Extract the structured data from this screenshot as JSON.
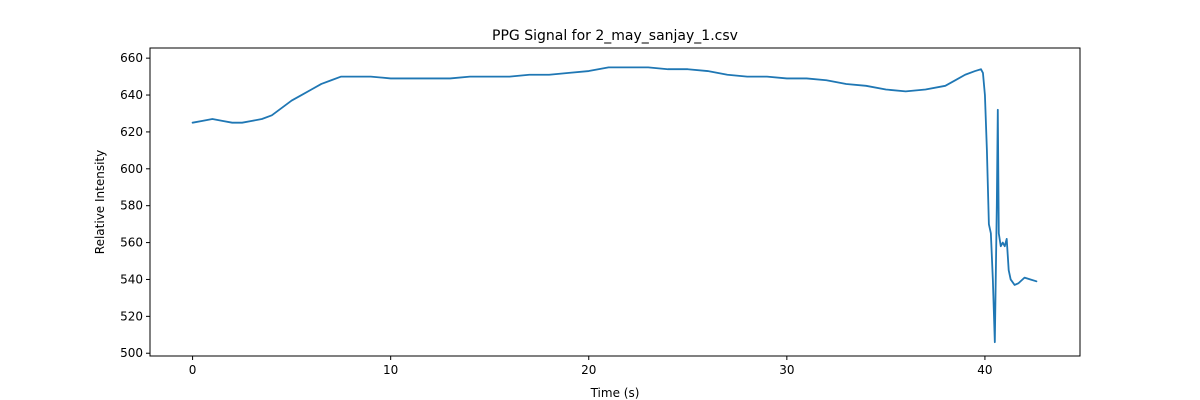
{
  "chart_data": {
    "type": "line",
    "title": "PPG Signal for 2_may_sanjay_1.csv",
    "xlabel": "Time (s)",
    "ylabel": "Relative Intensity",
    "xlim": [
      -2.15,
      44.8
    ],
    "ylim": [
      498.5,
      665.5
    ],
    "xticks": [
      0,
      10,
      20,
      30,
      40
    ],
    "xtick_labels": [
      "0",
      "10",
      "20",
      "30",
      "40"
    ],
    "yticks": [
      500,
      520,
      540,
      560,
      580,
      600,
      620,
      640,
      660
    ],
    "ytick_labels": [
      "500",
      "520",
      "540",
      "560",
      "580",
      "600",
      "620",
      "640",
      "660"
    ],
    "grid": false,
    "legend": "none",
    "series": [
      {
        "color": "#1f77b4",
        "x": [
          0.0,
          0.5,
          1.0,
          1.5,
          2.0,
          2.5,
          3.0,
          3.5,
          4.0,
          4.5,
          5.0,
          5.5,
          6.0,
          6.5,
          7.0,
          7.5,
          8.0,
          9.0,
          10.0,
          11.0,
          12.0,
          13.0,
          14.0,
          15.0,
          16.0,
          17.0,
          18.0,
          19.0,
          20.0,
          21.0,
          22.0,
          23.0,
          24.0,
          25.0,
          26.0,
          27.0,
          28.0,
          29.0,
          30.0,
          31.0,
          32.0,
          33.0,
          34.0,
          35.0,
          36.0,
          37.0,
          38.0,
          38.5,
          39.0,
          39.5,
          39.8,
          39.9,
          40.0,
          40.1,
          40.2,
          40.3,
          40.4,
          40.5,
          40.6,
          40.65,
          40.7,
          40.8,
          40.9,
          41.0,
          41.1,
          41.2,
          41.3,
          41.5,
          41.7,
          42.0,
          42.3,
          42.6
        ],
        "y": [
          625,
          626,
          627,
          626,
          625,
          625,
          626,
          627,
          629,
          633,
          637,
          640,
          643,
          646,
          648,
          650,
          650,
          650,
          649,
          649,
          649,
          649,
          650,
          650,
          650,
          651,
          651,
          652,
          653,
          655,
          655,
          655,
          654,
          654,
          653,
          651,
          650,
          650,
          649,
          649,
          648,
          646,
          645,
          643,
          642,
          643,
          645,
          648,
          651,
          653,
          654,
          652,
          640,
          610,
          570,
          565,
          540,
          506,
          580,
          632,
          565,
          558,
          560,
          558,
          562,
          545,
          540,
          537,
          538,
          541,
          540,
          539
        ]
      }
    ]
  }
}
